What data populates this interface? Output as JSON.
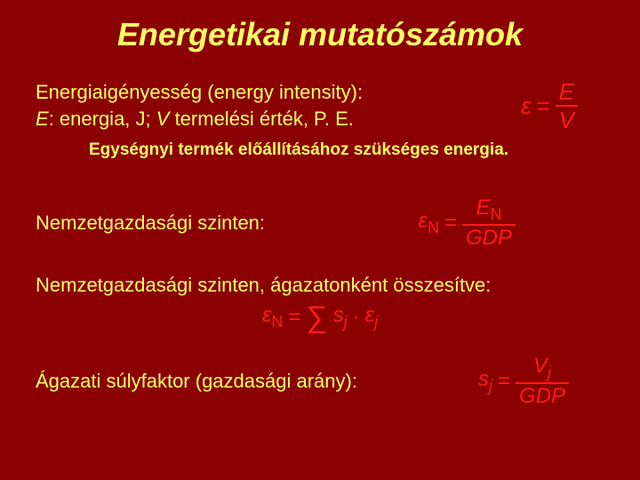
{
  "background_color": "#8b0000",
  "text_color": "#ffff66",
  "formula_color": "#ff1a1a",
  "title": "Energetikai mutatószámok",
  "line1a": "Energiaigényesség (energy intensity):",
  "line1b_prefix_italic": "E",
  "line1b_mid": ": energia, J; ",
  "line1b_italic2": "V",
  "line1b_suffix": " termelési érték, P. E.",
  "formula1": {
    "lhs": "ε",
    "num": "E",
    "den": "V"
  },
  "subnote": "Egységnyi termék előállításához szükséges energia.",
  "line2": "Nemzetgazdasági szinten:",
  "formula2": {
    "lhs": "ε",
    "lhs_sub": "N",
    "num": "E",
    "num_sub": "N",
    "den": "GDP"
  },
  "line3": "Nemzetgazdasági szinten, ágazatonként összesítve:",
  "formula3": {
    "lhs": "ε",
    "lhs_sub": "N",
    "sum": "∑",
    "t1": "s",
    "t1_sub": "j",
    "dot": "·",
    "t2": "ε",
    "t2_sub": "j"
  },
  "line4": "Ágazati súlyfaktor (gazdasági arány):",
  "formula4": {
    "lhs": "s",
    "lhs_sub": "j",
    "num": "V",
    "num_sub": "j",
    "den": "GDP"
  }
}
